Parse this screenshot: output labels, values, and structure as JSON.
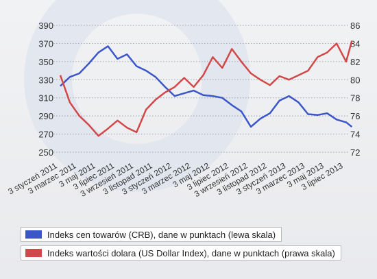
{
  "chart_data": {
    "type": "line",
    "title": "",
    "x_tick_labels": [
      "3 styczeń 2011",
      "3 marzec 2011",
      "3 maj 2011",
      "3 lipiec 2011",
      "3 wrzesień 2011",
      "3 listopad 2011",
      "3 styczeń 2012",
      "3 marzec 2012",
      "3 maj 2012",
      "3 lipiec 2012",
      "3 wrzesień 2012",
      "3 listopad 2012",
      "3 styczeń 2013",
      "3 marzec 2013",
      "3 maj 2013",
      "3 lipiec 2013"
    ],
    "y_left": {
      "ticks": [
        250,
        270,
        290,
        310,
        330,
        350,
        370,
        390
      ],
      "ylim": [
        250,
        390
      ]
    },
    "y_right": {
      "ticks": [
        72,
        74,
        76,
        78,
        80,
        82,
        84,
        86
      ],
      "ylim": [
        72,
        86
      ]
    },
    "grid": "horizontal dotted",
    "series": [
      {
        "name": "Indeks cen towarów (CRB), dane w punktach (lewa skala)",
        "axis": "left",
        "color": "#3a56c8",
        "x": [
          0,
          0.5,
          1,
          1.5,
          2,
          2.5,
          3,
          3.5,
          4,
          4.5,
          5,
          5.5,
          6,
          6.5,
          7,
          7.5,
          8,
          8.5,
          9,
          9.5,
          10,
          10.5,
          11,
          11.5,
          12,
          12.5,
          13,
          13.5,
          14,
          14.5,
          15,
          15.3
        ],
        "values": [
          323,
          333,
          337,
          348,
          360,
          367,
          353,
          358,
          345,
          340,
          333,
          322,
          312,
          315,
          318,
          313,
          312,
          310,
          302,
          295,
          278,
          287,
          293,
          307,
          312,
          305,
          292,
          291,
          293,
          286,
          283,
          278
        ]
      },
      {
        "name": "Indeks wartości dolara (US Dollar Index), dane w punktach (prawa skala)",
        "axis": "right",
        "color": "#d24848",
        "x": [
          0,
          0.5,
          1,
          1.5,
          2,
          2.5,
          3,
          3.5,
          4,
          4.5,
          5,
          5.5,
          6,
          6.5,
          7,
          7.5,
          8,
          8.5,
          9,
          9.5,
          10,
          10.5,
          11,
          11.5,
          12,
          12.5,
          13,
          13.5,
          14,
          14.5,
          15,
          15.3
        ],
        "values": [
          80.5,
          77.5,
          76.0,
          75.0,
          73.8,
          74.6,
          75.5,
          74.7,
          74.2,
          76.7,
          77.8,
          78.6,
          79.2,
          80.2,
          79.2,
          80.5,
          82.5,
          81.3,
          83.4,
          82.0,
          80.7,
          80.0,
          79.4,
          80.4,
          80.0,
          80.5,
          81.0,
          82.5,
          83.0,
          84.0,
          82.0,
          84.3
        ]
      }
    ]
  },
  "legend": {
    "crb": {
      "label": "Indeks cen towarów (CRB), dane w punktach (lewa skala)",
      "color": "#3a56c8"
    },
    "usd": {
      "label": "Indeks wartości dolara (US Dollar Index), dane w punktach (prawa skala)",
      "color": "#d24848"
    }
  }
}
